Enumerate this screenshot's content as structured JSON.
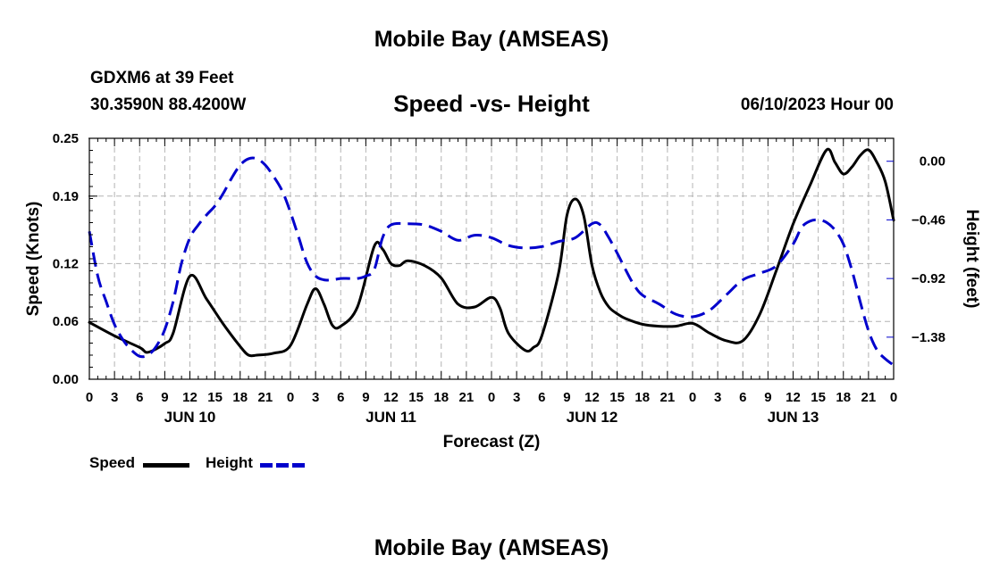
{
  "title": "Mobile Bay (AMSEAS)",
  "station": "GDXM6 at 39 Feet",
  "coords": "30.3590N  88.4200W",
  "subtitle": "Speed -vs- Height",
  "datetime": "06/10/2023 Hour 00",
  "bottom_title": "Mobile Bay (AMSEAS)",
  "legend": {
    "speed_label": "Speed",
    "height_label": "Height"
  },
  "colors": {
    "speed": "#000000",
    "height": "#0000cc",
    "grid": "#b4b4b4"
  },
  "chart_data": {
    "type": "line",
    "xlabel": "Forecast (Z)",
    "ylabel": "Speed (Knots)",
    "y2label": "Height (feet)",
    "xlim": [
      0,
      96
    ],
    "ylim": [
      0,
      0.25
    ],
    "y2lim": [
      -1.71,
      0.18
    ],
    "x_ticks": [
      0,
      3,
      6,
      9,
      12,
      15,
      18,
      21,
      24,
      27,
      30,
      33,
      36,
      39,
      42,
      45,
      48,
      51,
      54,
      57,
      60,
      63,
      66,
      69,
      72,
      75,
      78,
      81,
      84,
      87,
      90,
      93,
      96
    ],
    "x_tick_labels": [
      "0",
      "3",
      "6",
      "9",
      "12",
      "15",
      "18",
      "21",
      "0",
      "3",
      "6",
      "9",
      "12",
      "15",
      "18",
      "21",
      "0",
      "3",
      "6",
      "9",
      "12",
      "15",
      "18",
      "21",
      "0",
      "3",
      "6",
      "9",
      "12",
      "15",
      "18",
      "21",
      "0"
    ],
    "day_labels": [
      {
        "x": 12,
        "label": "JUN 10"
      },
      {
        "x": 36,
        "label": "JUN 11"
      },
      {
        "x": 60,
        "label": "JUN 12"
      },
      {
        "x": 84,
        "label": "JUN 13"
      }
    ],
    "y_ticks": [
      0.0,
      0.06,
      0.12,
      0.19,
      0.25
    ],
    "y_tick_labels": [
      "0.00",
      "0.06",
      "0.12",
      "0.19",
      "0.25"
    ],
    "y2_ticks": [
      0.0,
      -0.46,
      -0.92,
      -1.38
    ],
    "y2_tick_labels": [
      "0.00",
      "−0.46",
      "−0.92",
      "−1.38"
    ],
    "series": [
      {
        "name": "Speed",
        "axis": "left",
        "style": "solid",
        "x": [
          0,
          3,
          6,
          7,
          9,
          10,
          12,
          14,
          16,
          18,
          19,
          20,
          22,
          24,
          26,
          27,
          28,
          29,
          30,
          32,
          34,
          35,
          36,
          37,
          38,
          40,
          42,
          44,
          46,
          48,
          49,
          50,
          52,
          53,
          54,
          56,
          57,
          58,
          59,
          60,
          61,
          62,
          63,
          64,
          66,
          68,
          70,
          72,
          74,
          76,
          78,
          80,
          82,
          84,
          86,
          88,
          89,
          90,
          91,
          92,
          93,
          94,
          95,
          96
        ],
        "values": [
          0.059,
          0.045,
          0.033,
          0.028,
          0.037,
          0.048,
          0.107,
          0.083,
          0.057,
          0.034,
          0.025,
          0.025,
          0.027,
          0.035,
          0.078,
          0.094,
          0.078,
          0.056,
          0.055,
          0.075,
          0.138,
          0.135,
          0.12,
          0.118,
          0.123,
          0.118,
          0.105,
          0.078,
          0.075,
          0.085,
          0.074,
          0.048,
          0.03,
          0.033,
          0.045,
          0.11,
          0.17,
          0.187,
          0.17,
          0.118,
          0.09,
          0.075,
          0.068,
          0.063,
          0.057,
          0.055,
          0.055,
          0.058,
          0.048,
          0.04,
          0.04,
          0.067,
          0.113,
          0.161,
          0.201,
          0.238,
          0.225,
          0.213,
          0.22,
          0.232,
          0.238,
          0.225,
          0.205,
          0.165
        ]
      },
      {
        "name": "Height",
        "axis": "right",
        "style": "dashed",
        "x": [
          0,
          1,
          2,
          3,
          4,
          5,
          6,
          7,
          8,
          9,
          10,
          11,
          12,
          13,
          14,
          15,
          16,
          17,
          18,
          19,
          20,
          21,
          22,
          23,
          24,
          25,
          26,
          27,
          28,
          29,
          30,
          31,
          32,
          33,
          34,
          35,
          36,
          38,
          40,
          42,
          44,
          46,
          48,
          50,
          52,
          54,
          56,
          58,
          60,
          61,
          62,
          63,
          64,
          65,
          66,
          68,
          70,
          72,
          74,
          76,
          78,
          80,
          82,
          84,
          85,
          86,
          87,
          88,
          89,
          90,
          91,
          92,
          93,
          94,
          95,
          96
        ],
        "values": [
          -0.55,
          -0.9,
          -1.1,
          -1.28,
          -1.4,
          -1.48,
          -1.53,
          -1.52,
          -1.45,
          -1.32,
          -1.1,
          -0.8,
          -0.6,
          -0.5,
          -0.42,
          -0.35,
          -0.25,
          -0.13,
          -0.03,
          0.02,
          0.02,
          -0.03,
          -0.12,
          -0.23,
          -0.4,
          -0.6,
          -0.8,
          -0.9,
          -0.93,
          -0.93,
          -0.92,
          -0.92,
          -0.92,
          -0.9,
          -0.85,
          -0.6,
          -0.5,
          -0.49,
          -0.5,
          -0.55,
          -0.62,
          -0.58,
          -0.6,
          -0.66,
          -0.68,
          -0.67,
          -0.63,
          -0.6,
          -0.49,
          -0.5,
          -0.6,
          -0.72,
          -0.85,
          -0.97,
          -1.05,
          -1.12,
          -1.2,
          -1.22,
          -1.17,
          -1.05,
          -0.93,
          -0.88,
          -0.82,
          -0.65,
          -0.52,
          -0.47,
          -0.46,
          -0.48,
          -0.54,
          -0.65,
          -0.85,
          -1.1,
          -1.33,
          -1.48,
          -1.55,
          -1.6
        ]
      }
    ]
  }
}
